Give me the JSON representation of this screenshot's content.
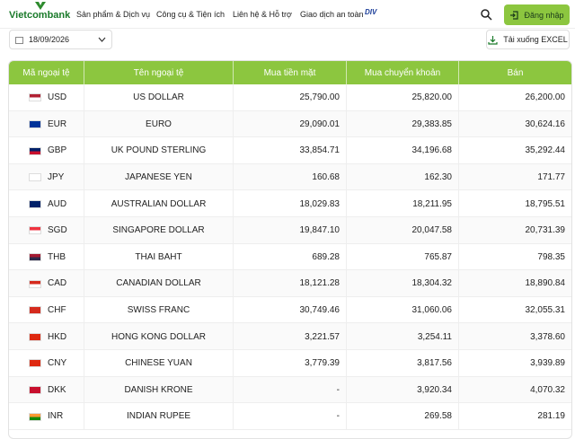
{
  "header": {
    "logo": "Vietcombank",
    "menu": [
      "Sản phẩm & Dịch vụ",
      "Công cụ & Tiện ích",
      "Liên hệ & Hỗ trợ",
      "Giao dịch an toàn"
    ],
    "partner_logo": "DIV",
    "login": "Đăng nhập"
  },
  "toolbar": {
    "date": "18/09/2026",
    "download": "Tải xuống EXCEL"
  },
  "table": {
    "columns": [
      "Mã ngoại tệ",
      "Tên ngoại tệ",
      "Mua tiền mặt",
      "Mua chuyển khoản",
      "Bán"
    ],
    "rows": [
      [
        "USD",
        "US DOLLAR",
        "25,790.00",
        "25,820.00",
        "26,200.00"
      ],
      [
        "EUR",
        "EURO",
        "29,090.01",
        "29,383.85",
        "30,624.16"
      ],
      [
        "GBP",
        "UK POUND STERLING",
        "33,854.71",
        "34,196.68",
        "35,292.44"
      ],
      [
        "JPY",
        "JAPANESE YEN",
        "160.68",
        "162.30",
        "171.77"
      ],
      [
        "AUD",
        "AUSTRALIAN DOLLAR",
        "18,029.83",
        "18,211.95",
        "18,795.51"
      ],
      [
        "SGD",
        "SINGAPORE DOLLAR",
        "19,847.10",
        "20,047.58",
        "20,731.39"
      ],
      [
        "THB",
        "THAI BAHT",
        "689.28",
        "765.87",
        "798.35"
      ],
      [
        "CAD",
        "CANADIAN DOLLAR",
        "18,121.28",
        "18,304.32",
        "18,890.84"
      ],
      [
        "CHF",
        "SWISS FRANC",
        "30,749.46",
        "31,060.06",
        "32,055.31"
      ],
      [
        "HKD",
        "HONG KONG DOLLAR",
        "3,221.57",
        "3,254.11",
        "3,378.60"
      ],
      [
        "CNY",
        "CHINESE YUAN",
        "3,779.39",
        "3,817.56",
        "3,939.89"
      ],
      [
        "DKK",
        "DANISH KRONE",
        "-",
        "3,920.34",
        "4,070.32"
      ],
      [
        "INR",
        "INDIAN RUPEE",
        "-",
        "269.58",
        "281.19"
      ]
    ]
  }
}
